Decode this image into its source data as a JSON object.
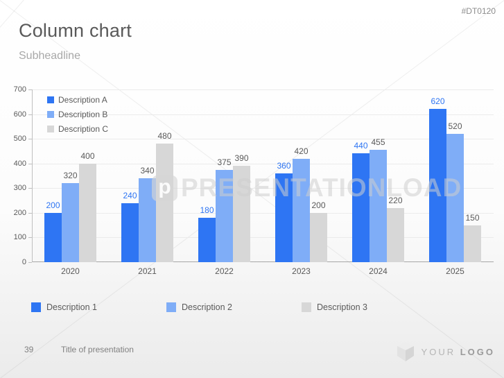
{
  "slide": {
    "title": "Column chart",
    "subheadline": "Subheadline",
    "code": "#DT0120",
    "watermark": {
      "icon_letter": "p",
      "text": "PRESENTATIONLOAD"
    },
    "footer": {
      "page_number": "39",
      "presentation_title": "Title of presentation"
    },
    "logo": {
      "text_light": "YOUR",
      "text_bold": "LOGO"
    }
  },
  "colors": {
    "series1": "#2e75f3",
    "series2": "#7fadf7",
    "series3": "#d7d7d7",
    "axis": "#bfbfbf",
    "text_dark": "#595959",
    "text_muted": "#808080"
  },
  "chart_data": {
    "type": "bar",
    "title": "",
    "xlabel": "",
    "ylabel": "",
    "categories": [
      "2020",
      "2021",
      "2022",
      "2023",
      "2024",
      "2025"
    ],
    "series": [
      {
        "name": "Description A",
        "color": "#2e75f3",
        "label_color": "#2e75f3",
        "values": [
          200,
          240,
          180,
          360,
          440,
          620
        ]
      },
      {
        "name": "Description B",
        "color": "#7fadf7",
        "label_color": "#595959",
        "values": [
          320,
          340,
          375,
          420,
          455,
          520
        ]
      },
      {
        "name": "Description C",
        "color": "#d7d7d7",
        "label_color": "#595959",
        "values": [
          400,
          480,
          390,
          200,
          220,
          150
        ]
      }
    ],
    "ylim": [
      0,
      700
    ],
    "ytick_step": 100,
    "grid": true,
    "legend_position": "top-left-inside",
    "value_labels": true
  },
  "bottom_legend": [
    {
      "label": "Description 1",
      "color": "#2e75f3"
    },
    {
      "label": "Description 2",
      "color": "#7fadf7"
    },
    {
      "label": "Description 3",
      "color": "#d7d7d7"
    }
  ]
}
